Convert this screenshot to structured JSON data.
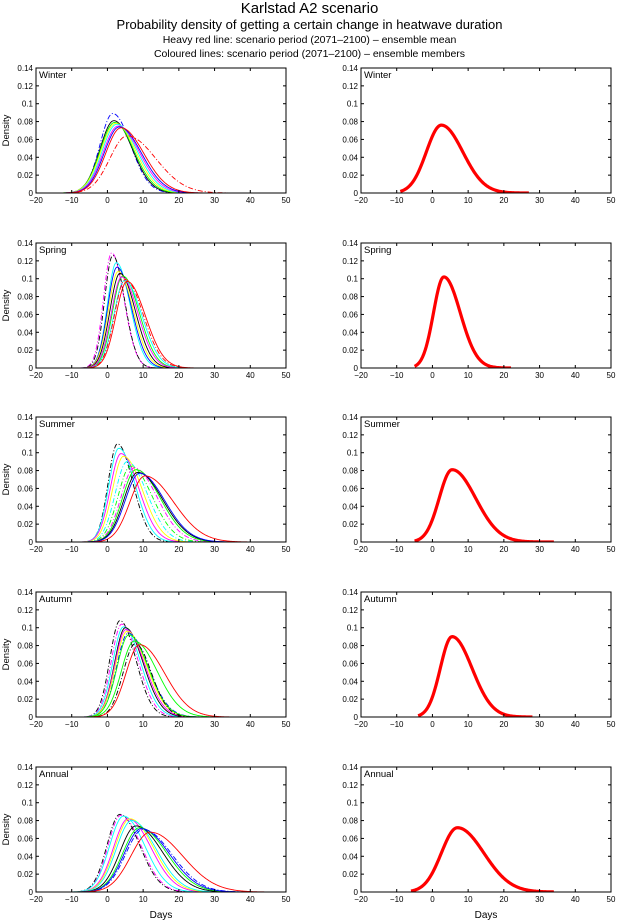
{
  "header": {
    "title": "Karlstad A2 scenario",
    "subtitle": "Probability density of getting a certain change in heatwave duration",
    "legend_line_1": "Heavy red line: scenario period (2071–2100) – ensemble mean",
    "legend_line_2": "Coloured lines: scenario period (2071–2100) – ensemble members"
  },
  "chart_data": {
    "type": "line",
    "title": "Karlstad A2 scenario",
    "subtitle": "Probability density of getting a certain change in heatwave duration",
    "xlabel": "Days",
    "ylabel": "Density",
    "xlim": [
      -20,
      50
    ],
    "ylim": [
      0,
      0.14
    ],
    "xticks": [
      -20,
      -10,
      0,
      10,
      20,
      30,
      40,
      50
    ],
    "yticks": [
      0,
      0.02,
      0.04,
      0.06,
      0.08,
      0.1,
      0.12,
      0.14
    ],
    "ytick_labels": [
      "0",
      "0.02",
      "0.04",
      "0.06",
      "0.08",
      "0.1",
      "0.12",
      "0.14"
    ],
    "grid": false,
    "layout": "5 rows x 2 columns; left column = ensemble members, right column = ensemble mean",
    "mean_color": "#ff0000",
    "member_colors": [
      "#000000",
      "#0000ff",
      "#ff00ff",
      "#00ffff",
      "#ffff00",
      "#00ff00",
      "#ff0000"
    ],
    "panels": [
      {
        "season": "Winter",
        "ensemble_mean": {
          "peak_x": 2.5,
          "peak_density": 0.076,
          "x_start": -9,
          "x_end": 27,
          "sigma_left": 4.2,
          "sigma_right": 6.0
        },
        "ensemble_members": [
          {
            "color": "#0000ff",
            "style": "dashdot",
            "peak_x": 1.5,
            "peak_density": 0.089,
            "sigma_left": 3.6,
            "sigma_right": 5.0
          },
          {
            "color": "#000000",
            "style": "solid",
            "peak_x": 1.8,
            "peak_density": 0.081,
            "sigma_left": 3.9,
            "sigma_right": 5.2
          },
          {
            "color": "#00ff00",
            "style": "solid",
            "peak_x": 2.0,
            "peak_density": 0.079,
            "sigma_left": 4.0,
            "sigma_right": 5.4
          },
          {
            "color": "#ffff00",
            "style": "solid",
            "peak_x": 2.3,
            "peak_density": 0.078,
            "sigma_left": 4.1,
            "sigma_right": 5.6
          },
          {
            "color": "#00ffff",
            "style": "solid",
            "peak_x": 2.6,
            "peak_density": 0.077,
            "sigma_left": 4.1,
            "sigma_right": 5.8
          },
          {
            "color": "#ff00ff",
            "style": "solid",
            "peak_x": 3.0,
            "peak_density": 0.075,
            "sigma_left": 4.2,
            "sigma_right": 6.0
          },
          {
            "color": "#0000ff",
            "style": "solid",
            "peak_x": 3.3,
            "peak_density": 0.074,
            "sigma_left": 4.2,
            "sigma_right": 6.2
          },
          {
            "color": "#ff0000",
            "style": "solid",
            "peak_x": 3.8,
            "peak_density": 0.073,
            "sigma_left": 4.3,
            "sigma_right": 6.4
          },
          {
            "color": "#ff0000",
            "style": "dashdot",
            "peak_x": 5.5,
            "peak_density": 0.064,
            "sigma_left": 4.8,
            "sigma_right": 8.0
          }
        ]
      },
      {
        "season": "Spring",
        "ensemble_mean": {
          "peak_x": 3.2,
          "peak_density": 0.102,
          "x_start": -5,
          "x_end": 22,
          "sigma_left": 2.9,
          "sigma_right": 4.6
        },
        "ensemble_members": [
          {
            "color": "#ff00ff",
            "style": "dashdot",
            "peak_x": 1.2,
            "peak_density": 0.129,
            "sigma_left": 2.3,
            "sigma_right": 3.4
          },
          {
            "color": "#000000",
            "style": "dashdot",
            "peak_x": 1.5,
            "peak_density": 0.126,
            "sigma_left": 2.3,
            "sigma_right": 3.3
          },
          {
            "color": "#00ffff",
            "style": "solid",
            "peak_x": 2.5,
            "peak_density": 0.118,
            "sigma_left": 2.5,
            "sigma_right": 3.8
          },
          {
            "color": "#0000ff",
            "style": "solid",
            "peak_x": 2.7,
            "peak_density": 0.113,
            "sigma_left": 2.6,
            "sigma_right": 4.0
          },
          {
            "color": "#ffff00",
            "style": "solid",
            "peak_x": 3.0,
            "peak_density": 0.108,
            "sigma_left": 2.7,
            "sigma_right": 4.2
          },
          {
            "color": "#000000",
            "style": "solid",
            "peak_x": 3.5,
            "peak_density": 0.106,
            "sigma_left": 2.8,
            "sigma_right": 4.3
          },
          {
            "color": "#00ff00",
            "style": "solid",
            "peak_x": 4.3,
            "peak_density": 0.103,
            "sigma_left": 2.9,
            "sigma_right": 4.6
          },
          {
            "color": "#ff00ff",
            "style": "solid",
            "peak_x": 4.0,
            "peak_density": 0.102,
            "sigma_left": 2.9,
            "sigma_right": 4.5
          },
          {
            "color": "#00ffff",
            "style": "solid",
            "peak_x": 4.8,
            "peak_density": 0.098,
            "sigma_left": 3.0,
            "sigma_right": 4.8
          },
          {
            "color": "#ff0000",
            "style": "dashdot",
            "peak_x": 5.0,
            "peak_density": 0.099,
            "sigma_left": 3.0,
            "sigma_right": 5.0
          },
          {
            "color": "#ff0000",
            "style": "solid",
            "peak_x": 5.5,
            "peak_density": 0.097,
            "sigma_left": 3.1,
            "sigma_right": 5.1
          }
        ]
      },
      {
        "season": "Summer",
        "ensemble_mean": {
          "peak_x": 5.5,
          "peak_density": 0.081,
          "x_start": -5,
          "x_end": 34,
          "sigma_left": 3.6,
          "sigma_right": 6.6
        },
        "ensemble_members": [
          {
            "color": "#000000",
            "style": "dashdot",
            "peak_x": 2.8,
            "peak_density": 0.11,
            "sigma_left": 2.6,
            "sigma_right": 4.3
          },
          {
            "color": "#00ffff",
            "style": "solid",
            "peak_x": 3.2,
            "peak_density": 0.105,
            "sigma_left": 2.8,
            "sigma_right": 4.6
          },
          {
            "color": "#ff00ff",
            "style": "solid",
            "peak_x": 3.8,
            "peak_density": 0.099,
            "sigma_left": 3.0,
            "sigma_right": 5.0
          },
          {
            "color": "#ffff00",
            "style": "solid",
            "peak_x": 4.5,
            "peak_density": 0.096,
            "sigma_left": 3.1,
            "sigma_right": 5.3
          },
          {
            "color": "#00ffff",
            "style": "dashdot",
            "peak_x": 5.5,
            "peak_density": 0.09,
            "sigma_left": 3.3,
            "sigma_right": 5.6
          },
          {
            "color": "#00ff00",
            "style": "dashdot",
            "peak_x": 6.5,
            "peak_density": 0.085,
            "sigma_left": 3.5,
            "sigma_right": 6.0
          },
          {
            "color": "#ff00ff",
            "style": "dashdot",
            "peak_x": 7.5,
            "peak_density": 0.083,
            "sigma_left": 3.7,
            "sigma_right": 6.4
          },
          {
            "color": "#00ff00",
            "style": "solid",
            "peak_x": 8.0,
            "peak_density": 0.081,
            "sigma_left": 3.8,
            "sigma_right": 6.8
          },
          {
            "color": "#000000",
            "style": "solid",
            "peak_x": 8.5,
            "peak_density": 0.078,
            "sigma_left": 3.9,
            "sigma_right": 7.0
          },
          {
            "color": "#0000ff",
            "style": "solid",
            "peak_x": 9.0,
            "peak_density": 0.077,
            "sigma_left": 4.0,
            "sigma_right": 7.0
          },
          {
            "color": "#ff0000",
            "style": "solid",
            "peak_x": 10.5,
            "peak_density": 0.074,
            "sigma_left": 4.2,
            "sigma_right": 8.0
          }
        ]
      },
      {
        "season": "Autumn",
        "ensemble_mean": {
          "peak_x": 5.5,
          "peak_density": 0.09,
          "x_start": -4,
          "x_end": 28,
          "sigma_left": 3.3,
          "sigma_right": 5.6
        },
        "ensemble_members": [
          {
            "color": "#000000",
            "style": "dashdot",
            "peak_x": 3.5,
            "peak_density": 0.108,
            "sigma_left": 2.8,
            "sigma_right": 4.4
          },
          {
            "color": "#ff00ff",
            "style": "dashdot",
            "peak_x": 4.0,
            "peak_density": 0.104,
            "sigma_left": 2.9,
            "sigma_right": 4.6
          },
          {
            "color": "#00ffff",
            "style": "solid",
            "peak_x": 4.5,
            "peak_density": 0.101,
            "sigma_left": 3.0,
            "sigma_right": 4.8
          },
          {
            "color": "#000000",
            "style": "solid",
            "peak_x": 5.0,
            "peak_density": 0.1,
            "sigma_left": 3.0,
            "sigma_right": 5.0
          },
          {
            "color": "#ff00ff",
            "style": "solid",
            "peak_x": 5.2,
            "peak_density": 0.098,
            "sigma_left": 3.1,
            "sigma_right": 5.2
          },
          {
            "color": "#ffff00",
            "style": "solid",
            "peak_x": 5.5,
            "peak_density": 0.096,
            "sigma_left": 3.2,
            "sigma_right": 5.4
          },
          {
            "color": "#0000ff",
            "style": "dashdot",
            "peak_x": 5.8,
            "peak_density": 0.094,
            "sigma_left": 3.2,
            "sigma_right": 5.6
          },
          {
            "color": "#00ff00",
            "style": "solid",
            "peak_x": 6.0,
            "peak_density": 0.092,
            "sigma_left": 3.3,
            "sigma_right": 5.4
          },
          {
            "color": "#00ff00",
            "style": "solid",
            "peak_x": 7.5,
            "peak_density": 0.085,
            "sigma_left": 3.6,
            "sigma_right": 6.4
          },
          {
            "color": "#000000",
            "style": "dashdot",
            "peak_x": 7.8,
            "peak_density": 0.082,
            "sigma_left": 3.4,
            "sigma_right": 4.5
          },
          {
            "color": "#ff0000",
            "style": "solid",
            "peak_x": 9.0,
            "peak_density": 0.081,
            "sigma_left": 3.8,
            "sigma_right": 7.0
          }
        ]
      },
      {
        "season": "Annual",
        "ensemble_mean": {
          "peak_x": 7.0,
          "peak_density": 0.072,
          "x_start": -6,
          "x_end": 34,
          "sigma_left": 4.5,
          "sigma_right": 7.4
        },
        "ensemble_members": [
          {
            "color": "#000000",
            "style": "dashdot",
            "peak_x": 3.5,
            "peak_density": 0.087,
            "sigma_left": 3.6,
            "sigma_right": 5.5
          },
          {
            "color": "#ff00ff",
            "style": "dashdot",
            "peak_x": 3.8,
            "peak_density": 0.086,
            "sigma_left": 3.6,
            "sigma_right": 5.6
          },
          {
            "color": "#00ffff",
            "style": "solid",
            "peak_x": 4.5,
            "peak_density": 0.085,
            "sigma_left": 3.9,
            "sigma_right": 6.0
          },
          {
            "color": "#ff00ff",
            "style": "solid",
            "peak_x": 5.8,
            "peak_density": 0.082,
            "sigma_left": 4.1,
            "sigma_right": 6.4
          },
          {
            "color": "#ffff00",
            "style": "solid",
            "peak_x": 6.3,
            "peak_density": 0.082,
            "sigma_left": 4.2,
            "sigma_right": 6.6
          },
          {
            "color": "#00ffff",
            "style": "solid",
            "peak_x": 6.8,
            "peak_density": 0.08,
            "sigma_left": 4.3,
            "sigma_right": 6.8
          },
          {
            "color": "#000000",
            "style": "solid",
            "peak_x": 8.0,
            "peak_density": 0.074,
            "sigma_left": 4.5,
            "sigma_right": 7.4
          },
          {
            "color": "#00ff00",
            "style": "solid",
            "peak_x": 9.0,
            "peak_density": 0.072,
            "sigma_left": 4.7,
            "sigma_right": 7.6
          },
          {
            "color": "#0000ff",
            "style": "solid",
            "peak_x": 9.5,
            "peak_density": 0.071,
            "sigma_left": 4.8,
            "sigma_right": 7.8
          },
          {
            "color": "#0000ff",
            "style": "dashdot",
            "peak_x": 10.0,
            "peak_density": 0.07,
            "sigma_left": 4.9,
            "sigma_right": 8.0
          },
          {
            "color": "#ff0000",
            "style": "solid",
            "peak_x": 12.0,
            "peak_density": 0.067,
            "sigma_left": 5.4,
            "sigma_right": 9.0
          }
        ]
      }
    ]
  }
}
